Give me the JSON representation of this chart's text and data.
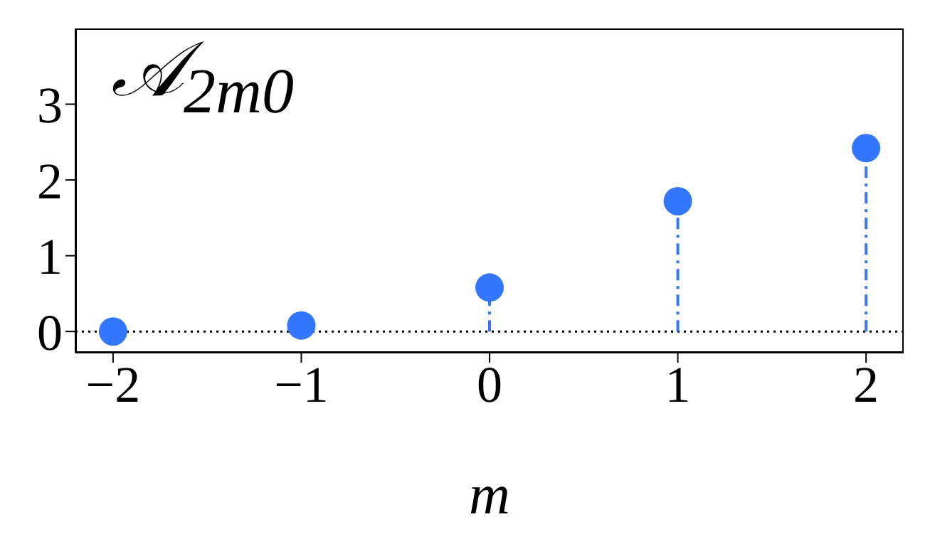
{
  "chart_data": {
    "type": "lollipop",
    "title": "𝒜$_{2m0}$",
    "xlabel": "m",
    "x": [
      -2,
      -1,
      0,
      1,
      2
    ],
    "series": [
      {
        "color": "#3377ff",
        "values": [
          0.0,
          0.08,
          0.58,
          1.72,
          2.42
        ]
      }
    ],
    "xlim": [
      -2.2,
      2.2
    ],
    "xticks": [
      {
        "value": -2,
        "label": "−2"
      },
      {
        "value": -1,
        "label": "−1"
      },
      0,
      1,
      2
    ],
    "ylim": [
      -0.28,
      4
    ],
    "yticks": [
      0,
      1,
      2,
      3
    ],
    "ref_lines": [
      {
        "axis": "y",
        "value": 0,
        "color": "#000000",
        "line_style": "dotted"
      }
    ],
    "marker": "circle",
    "line_style": "dashed"
  }
}
